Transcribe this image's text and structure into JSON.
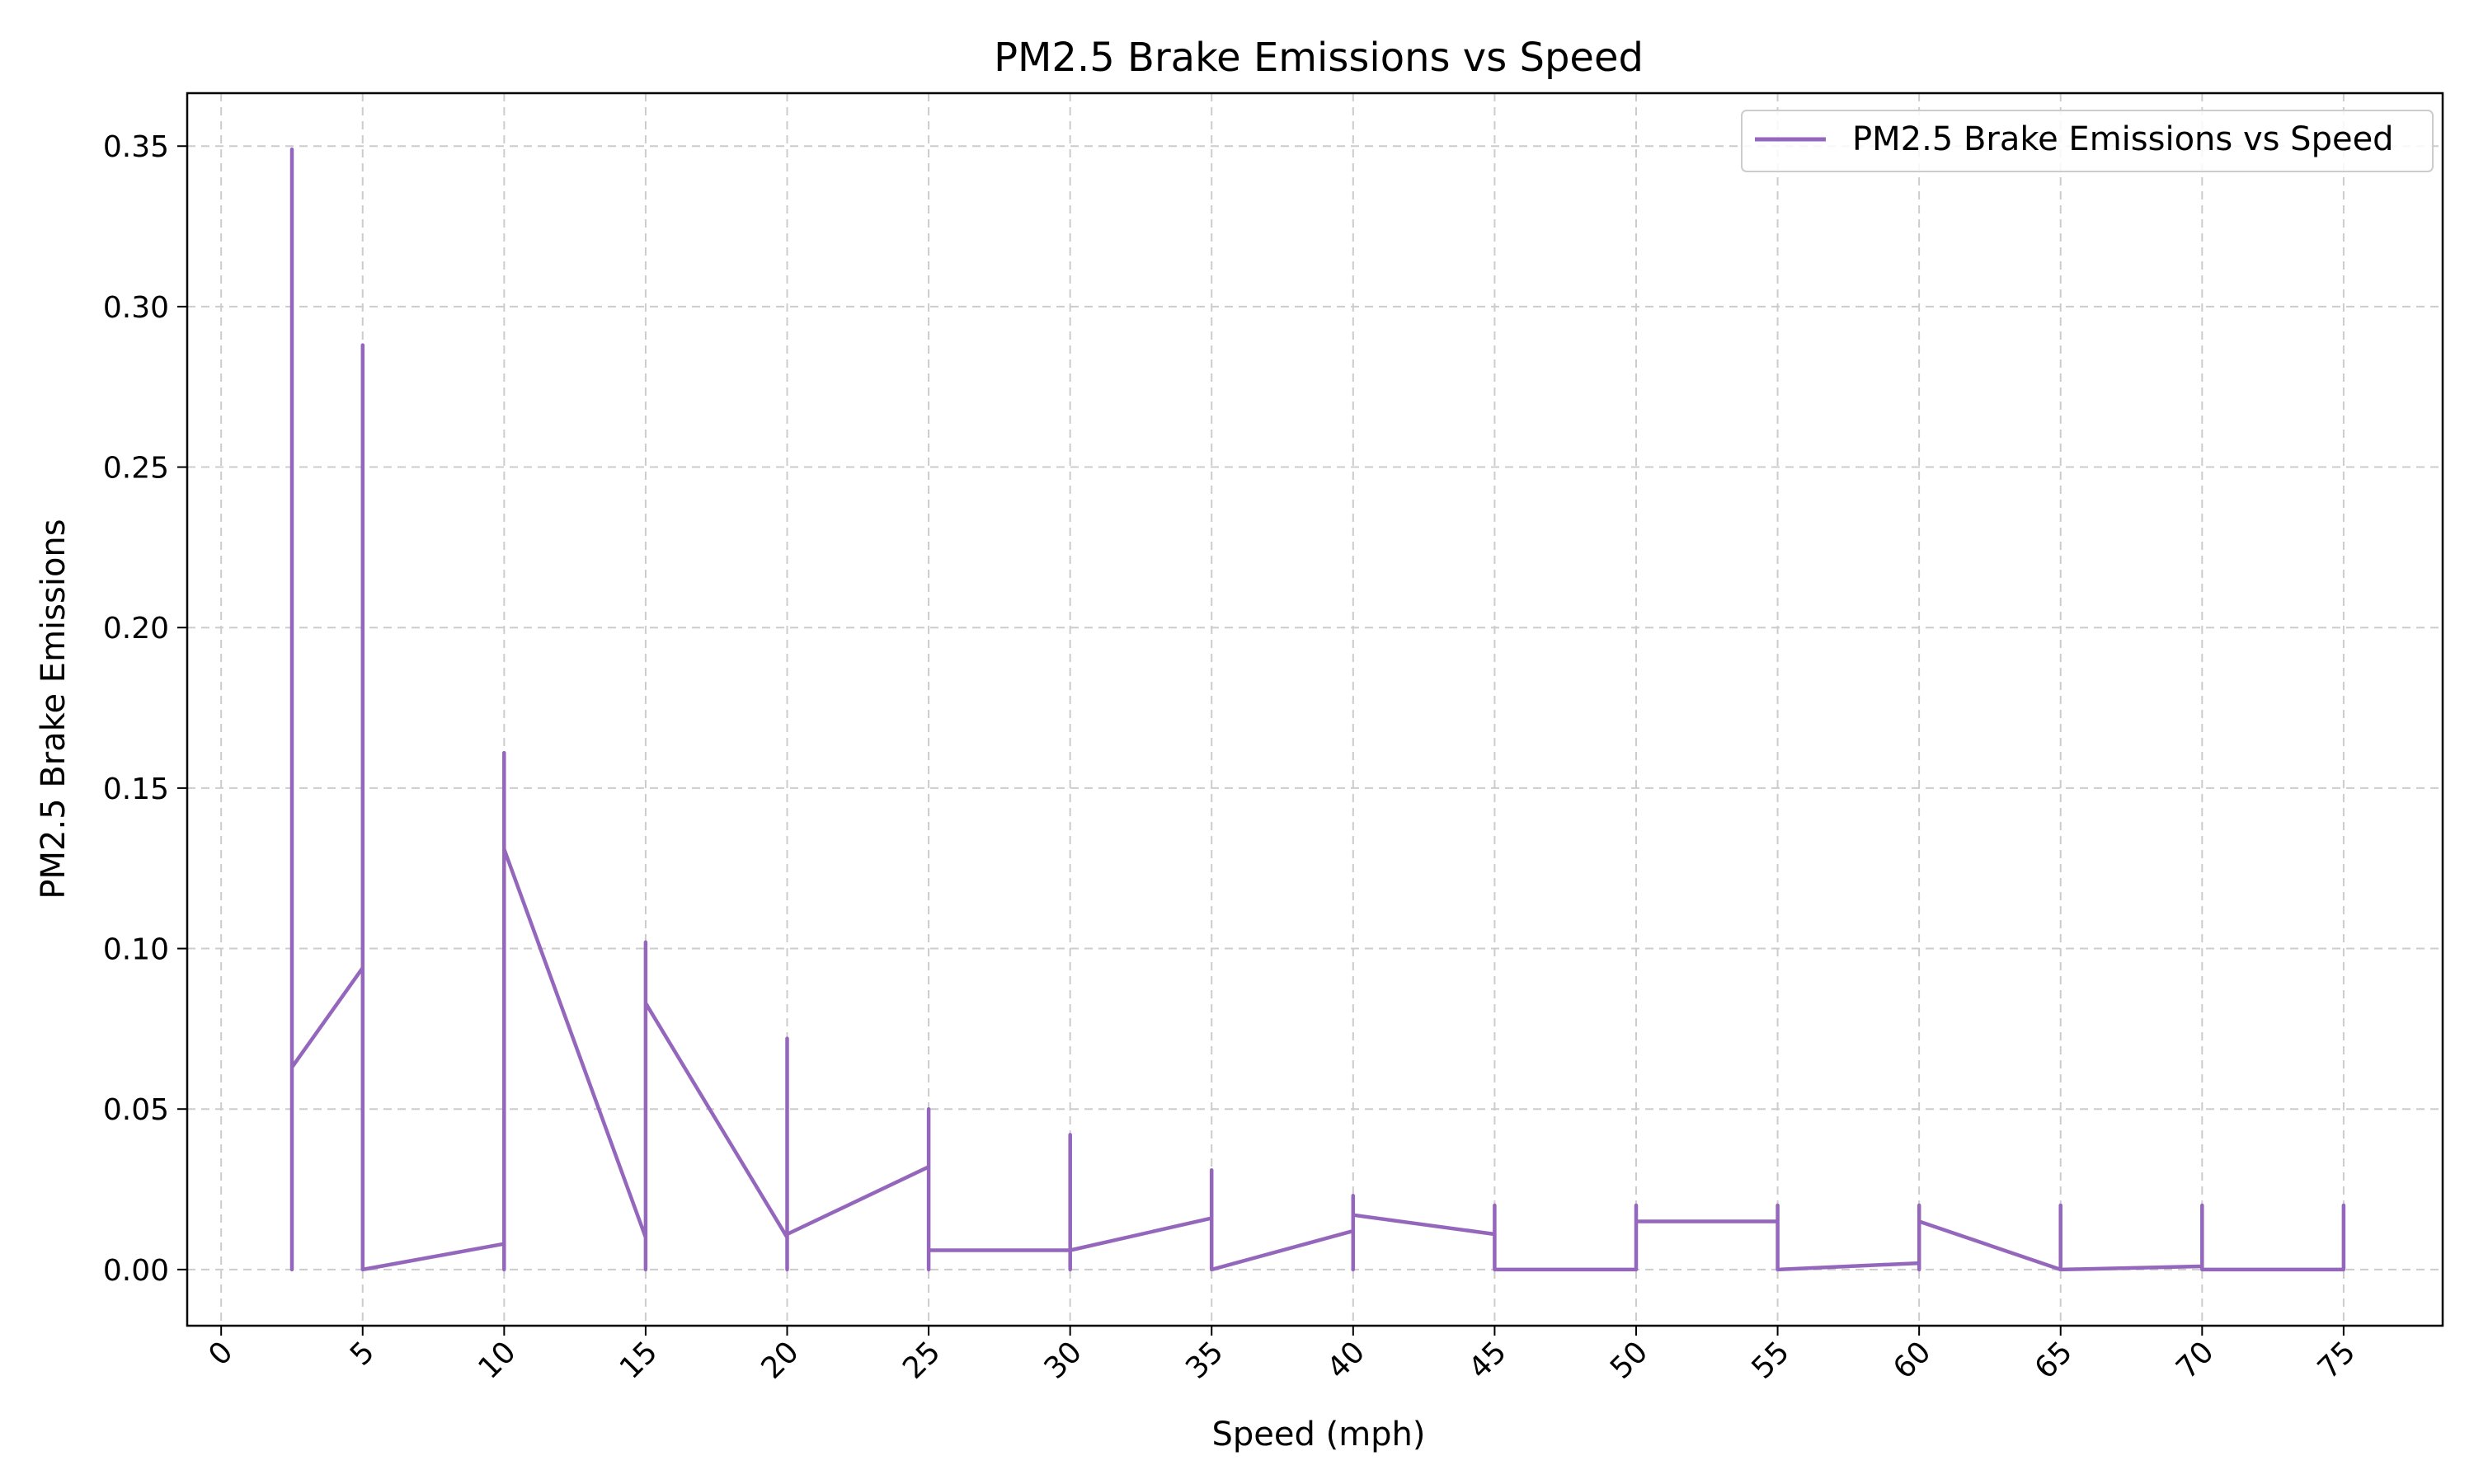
{
  "chart_data": {
    "type": "line",
    "title": "PM2.5 Brake Emissions vs Speed",
    "xlabel": "Speed (mph)",
    "ylabel": "PM2.5 Brake Emissions",
    "xlim": [
      -1.2,
      78.5
    ],
    "ylim": [
      -0.0175,
      0.3665
    ],
    "xticks": [
      0,
      5,
      10,
      15,
      20,
      25,
      30,
      35,
      40,
      45,
      50,
      55,
      60,
      65,
      70,
      75
    ],
    "xtick_labels": [
      "0",
      "5",
      "10",
      "15",
      "20",
      "25",
      "30",
      "35",
      "40",
      "45",
      "50",
      "55",
      "60",
      "65",
      "70",
      "75"
    ],
    "yticks": [
      0.0,
      0.05,
      0.1,
      0.15,
      0.2,
      0.25,
      0.3,
      0.35
    ],
    "ytick_labels": [
      "0.00",
      "0.05",
      "0.10",
      "0.15",
      "0.20",
      "0.25",
      "0.30",
      "0.35"
    ],
    "grid": true,
    "legend_position": "top-right",
    "series": [
      {
        "name": "PM2.5 Brake Emissions vs Speed",
        "color": "#9467bd",
        "x": [
          2.5,
          2.5,
          2.5,
          5,
          5,
          5,
          5,
          10,
          10,
          10,
          10,
          15,
          15,
          15,
          15,
          20,
          20,
          20,
          20,
          25,
          25,
          25,
          25,
          30,
          30,
          30,
          30,
          35,
          35,
          35,
          35,
          40,
          40,
          40,
          40,
          45,
          45,
          45,
          45,
          50,
          50,
          50,
          50,
          55,
          55,
          55,
          55,
          60,
          60,
          60,
          60,
          65,
          65,
          65,
          65,
          70,
          70,
          70,
          70,
          75,
          75,
          75
        ],
        "y": [
          0.0,
          0.349,
          0.063,
          0.094,
          0.0,
          0.288,
          0.0,
          0.008,
          0.0,
          0.161,
          0.131,
          0.01,
          0.0,
          0.102,
          0.083,
          0.01,
          0.0,
          0.072,
          0.011,
          0.032,
          0.0,
          0.05,
          0.006,
          0.006,
          0.0,
          0.042,
          0.006,
          0.016,
          0.0,
          0.031,
          0.0,
          0.012,
          0.0,
          0.023,
          0.017,
          0.011,
          0.0,
          0.02,
          0.0,
          0.0,
          0.0,
          0.02,
          0.015,
          0.015,
          0.0,
          0.02,
          0.0,
          0.002,
          0.0,
          0.02,
          0.015,
          0.0,
          0.0,
          0.02,
          0.0,
          0.001,
          0.0,
          0.02,
          0.0,
          0.0,
          0.0,
          0.02
        ]
      }
    ]
  }
}
